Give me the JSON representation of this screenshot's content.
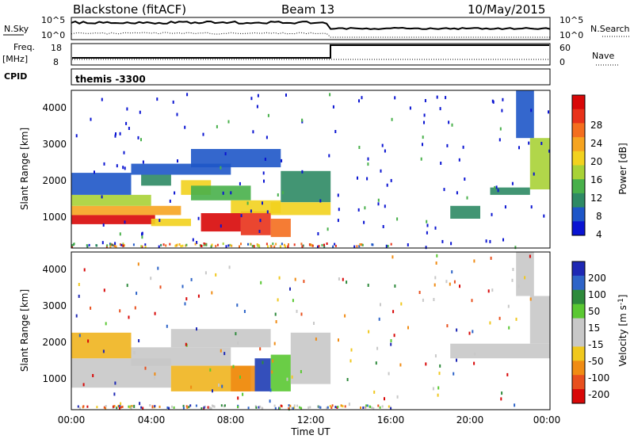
{
  "header": {
    "station": "Blackstone (fitACF)",
    "beam": "Beam 13",
    "date": "10/May/2015"
  },
  "top_panel": {
    "nsky_label": "N.Sky",
    "nsky_ticks": [
      "10^5",
      "10^0"
    ],
    "nsearch_label": "N.Search",
    "nsearch_ticks": [
      "10^5",
      "10^0"
    ],
    "freq_label": "Freq.",
    "freq_unit": "[MHz]",
    "freq_ticks": [
      "18",
      "8"
    ],
    "nave_label": "Nave",
    "nave_ticks": [
      "60",
      "0"
    ],
    "cpid_label": "CPID",
    "cpid_value": "themis -3300"
  },
  "colors": {
    "power_scale": [
      "#0a14d2",
      "#1e56c8",
      "#2e8a64",
      "#48b04a",
      "#a8d236",
      "#f2d21e",
      "#f6a420",
      "#f46e1e",
      "#e8321a",
      "#d80808"
    ],
    "velocity_scale": [
      "#1e28b4",
      "#2e64c8",
      "#2e8a3c",
      "#5ac832",
      "#c8c8c8",
      "#c8c8c8",
      "#f0c81e",
      "#f08c14",
      "#e8501e",
      "#d80808"
    ],
    "gray": "#c8c8c8"
  },
  "chart_data": [
    {
      "type": "heatmap",
      "name": "power",
      "ylabel": "Slant Range [km]",
      "y_ticks": [
        "1000",
        "2000",
        "3000",
        "4000"
      ],
      "ylim": [
        200,
        4500
      ],
      "colorbar_label": "Power [dB]",
      "colorbar_ticks": [
        "28",
        "24",
        "20",
        "16",
        "12",
        "8",
        "4"
      ],
      "regions": [
        {
          "t0": 0.0,
          "t1": 4.2,
          "r0": 850,
          "r1": 1100,
          "v": 0.95
        },
        {
          "t0": 0.0,
          "t1": 5.5,
          "r0": 1100,
          "r1": 1350,
          "v": 0.7
        },
        {
          "t0": 0.0,
          "t1": 4.0,
          "r0": 1350,
          "r1": 1650,
          "v": 0.45
        },
        {
          "t0": 0.0,
          "t1": 3.0,
          "r0": 1650,
          "r1": 2250,
          "v": 0.1
        },
        {
          "t0": 4.0,
          "t1": 6.0,
          "r0": 800,
          "r1": 1000,
          "v": 0.6
        },
        {
          "t0": 5.5,
          "t1": 7.0,
          "r0": 1650,
          "r1": 2050,
          "v": 0.5
        },
        {
          "t0": 3.5,
          "t1": 5.0,
          "r0": 1900,
          "r1": 2200,
          "v": 0.25
        },
        {
          "t0": 3.0,
          "t1": 8.0,
          "r0": 2200,
          "r1": 2500,
          "v": 0.15
        },
        {
          "t0": 6.0,
          "t1": 10.5,
          "r0": 2400,
          "r1": 2900,
          "v": 0.1
        },
        {
          "t0": 6.0,
          "t1": 9.0,
          "r0": 1500,
          "r1": 1900,
          "v": 0.35
        },
        {
          "t0": 6.5,
          "t1": 8.5,
          "r0": 650,
          "r1": 1150,
          "v": 0.95
        },
        {
          "t0": 8.5,
          "t1": 10.0,
          "r0": 550,
          "r1": 1200,
          "v": 0.85
        },
        {
          "t0": 8.0,
          "t1": 10.5,
          "r0": 1150,
          "r1": 1500,
          "v": 0.6
        },
        {
          "t0": 10.0,
          "t1": 13.0,
          "r0": 1100,
          "r1": 1450,
          "v": 0.5
        },
        {
          "t0": 10.5,
          "t1": 13.0,
          "r0": 1450,
          "r1": 2300,
          "v": 0.2
        },
        {
          "t0": 10.0,
          "t1": 11.0,
          "r0": 500,
          "r1": 1000,
          "v": 0.75
        },
        {
          "t0": 21.0,
          "t1": 23.0,
          "r0": 1650,
          "r1": 1850,
          "v": 0.2
        },
        {
          "t0": 19.0,
          "t1": 20.5,
          "r0": 1000,
          "r1": 1350,
          "v": 0.25
        },
        {
          "t0": 23.0,
          "t1": 24.0,
          "r0": 1800,
          "r1": 3200,
          "v": 0.45
        },
        {
          "t0": 22.3,
          "t1": 23.2,
          "r0": 3200,
          "r1": 4500,
          "v": 0.15
        }
      ]
    },
    {
      "type": "heatmap",
      "name": "velocity",
      "ylabel": "Slant Range [km]",
      "y_ticks": [
        "1000",
        "2000",
        "3000",
        "4000"
      ],
      "ylim": [
        200,
        4500
      ],
      "x_ticks": [
        "00:00",
        "04:00",
        "08:00",
        "12:00",
        "16:00",
        "20:00",
        "00:00"
      ],
      "xlabel": "Time UT",
      "xlim": [
        0,
        24
      ],
      "colorbar_label": "Velocity [m s-1]",
      "colorbar_ticks": [
        "200",
        "100",
        "50",
        "15",
        "-15",
        "-50",
        "-100",
        "-200"
      ],
      "regions": [
        {
          "t0": 0.0,
          "t1": 5.0,
          "r0": 800,
          "r1": 1600,
          "v": "gray"
        },
        {
          "t0": 0.0,
          "t1": 3.0,
          "r0": 1600,
          "r1": 2300,
          "v": "orange"
        },
        {
          "t0": 3.0,
          "t1": 8.0,
          "r0": 1400,
          "r1": 1900,
          "v": "gray"
        },
        {
          "t0": 5.0,
          "t1": 9.0,
          "r0": 700,
          "r1": 1400,
          "v": "orange"
        },
        {
          "t0": 8.0,
          "t1": 9.2,
          "r0": 700,
          "r1": 1400,
          "v": "darkorange"
        },
        {
          "t0": 9.2,
          "t1": 10.0,
          "r0": 700,
          "r1": 1600,
          "v": "blue"
        },
        {
          "t0": 10.0,
          "t1": 11.0,
          "r0": 700,
          "r1": 1700,
          "v": "green"
        },
        {
          "t0": 11.0,
          "t1": 13.0,
          "r0": 900,
          "r1": 2300,
          "v": "gray"
        },
        {
          "t0": 5.0,
          "t1": 10.0,
          "r0": 1900,
          "r1": 2400,
          "v": "gray"
        },
        {
          "t0": 19.0,
          "t1": 24.0,
          "r0": 1600,
          "r1": 2000,
          "v": "gray"
        },
        {
          "t0": 23.0,
          "t1": 24.0,
          "r0": 2000,
          "r1": 3300,
          "v": "gray"
        },
        {
          "t0": 22.3,
          "t1": 23.2,
          "r0": 3300,
          "r1": 4500,
          "v": "gray"
        }
      ]
    }
  ]
}
